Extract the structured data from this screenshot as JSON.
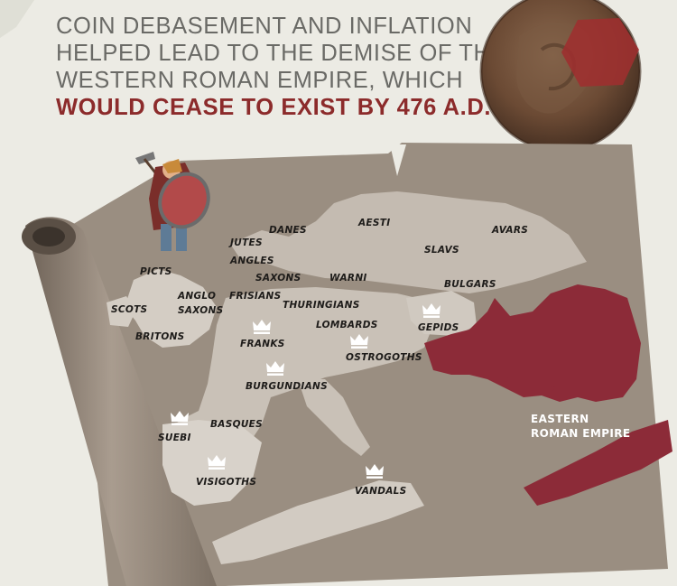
{
  "headline": {
    "line1": "COIN DEBASEMENT AND INFLATION",
    "line2": "HELPED LEAD TO THE DEMISE OF THE",
    "line3": "WESTERN ROMAN EMPIRE, WHICH",
    "line4": "WOULD CEASE TO EXIST BY 476 A.D."
  },
  "map": {
    "labels": {
      "danes": "DANES",
      "aesti": "AESTI",
      "avars": "AVARS",
      "jutes": "JUTES",
      "slavs": "SLAVS",
      "angles": "ANGLES",
      "picts": "PICTS",
      "saxons": "SAXONS",
      "warni": "WARNI",
      "bulgars": "BULGARS",
      "anglo": "ANGLO",
      "anglo_saxons": "SAXONS",
      "frisians": "FRISIANS",
      "scots": "SCOTS",
      "thuringians": "THURINGIANS",
      "lombards": "LOMBARDS",
      "gepids": "GEPIDS",
      "britons": "BRITONS",
      "franks": "FRANKS",
      "ostrogoths": "OSTROGOTHS",
      "burgundians": "BURGUNDIANS",
      "suebi": "SUEBI",
      "basques": "BASQUES",
      "visigoths": "VISIGOTHS",
      "vandals": "VANDALS",
      "eastern1": "EASTERN",
      "eastern2": "ROMAN EMPIRE"
    }
  },
  "colors": {
    "accent": "#8c2b2b",
    "parchment": "#9a8e81",
    "land": "#b8afa5",
    "land_light": "#d8d2ca",
    "eastern_empire": "#8c2b38"
  },
  "icons": [
    "crown-icon",
    "coin-icon",
    "barbarian-warrior-icon",
    "map-scroll-icon"
  ]
}
